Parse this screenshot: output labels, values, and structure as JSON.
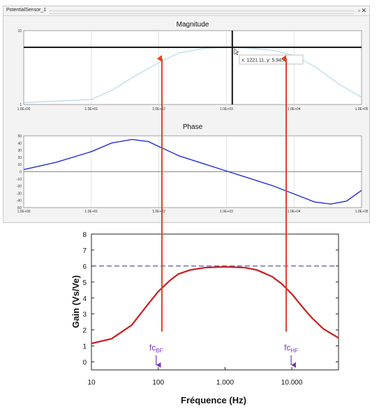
{
  "window": {
    "title": "PotentialSensor_1",
    "restore_icon": "restore-window-icon",
    "close_icon": "close-icon"
  },
  "tooltip": "x: 1221.11, y: 5.9455",
  "annotations": {
    "fc_low": "fc",
    "fc_low_sub": "BF",
    "fc_high": "fc",
    "fc_high_sub": "HF"
  },
  "colors": {
    "magnitude_curve": "#b9dcec",
    "phase_curve": "#1f2fd6",
    "gain_curve": "#cc1c1c",
    "gain_reference": "#2c2c86",
    "arrows": "#e5441f",
    "fc_markers": "#7a35c4",
    "cursor": "#111111"
  },
  "chart_data": [
    {
      "type": "line",
      "title": "Magnitude",
      "x_scale": "log",
      "xlim": [
        1,
        100000
      ],
      "ylim": [
        1,
        10
      ],
      "y_scale": "log",
      "xticks": [
        "1.0E+00",
        "1.0E+01",
        "1.0E+02",
        "1.0E+03",
        "1.0E+04",
        "1.0E+05"
      ],
      "yticks": [
        "10",
        "1"
      ],
      "grid": true,
      "x": [
        1,
        10,
        20,
        40,
        100,
        200,
        500,
        1000,
        2000,
        5000,
        10000,
        20000,
        50000,
        100000
      ],
      "series": [
        {
          "values": [
            1.06,
            1.17,
            1.55,
            2.3,
            3.7,
            5.0,
            5.8,
            5.95,
            5.85,
            5.4,
            4.6,
            3.3,
            1.8,
            1.25
          ]
        }
      ],
      "cursor": {
        "x": 1221.11,
        "y": 5.9455
      }
    },
    {
      "type": "line",
      "title": "Phase",
      "x_scale": "log",
      "xlim": [
        1,
        100000
      ],
      "ylim": [
        -50,
        50
      ],
      "xticks": [
        "1.0E+00",
        "1.0E+01",
        "1.0E+02",
        "1.0E+03",
        "1.0E+04",
        "1.0E+05"
      ],
      "yticks": [
        "50",
        "40",
        "30",
        "20",
        "10",
        "0",
        "-10",
        "-20",
        "-30",
        "-40",
        "-50"
      ],
      "grid": true,
      "x": [
        1,
        3,
        10,
        20,
        40,
        70,
        100,
        200,
        500,
        1000,
        2000,
        5000,
        10000,
        20000,
        35000,
        60000,
        100000
      ],
      "series": [
        {
          "values": [
            3,
            13,
            28,
            40,
            45,
            42,
            35,
            22,
            10,
            1,
            -8,
            -20,
            -31,
            -42,
            -45,
            -41,
            -26
          ]
        }
      ]
    },
    {
      "type": "line",
      "xlabel": "Fréquence (Hz)",
      "ylabel": "Gain (Vs/Ve)",
      "x_scale": "log",
      "xlim": [
        10,
        50000
      ],
      "ylim": [
        -0.5,
        8
      ],
      "xticks": [
        "10",
        "100",
        "1.000",
        "10.000"
      ],
      "yticks": [
        "8",
        "7",
        "6",
        "5",
        "4",
        "3",
        "2",
        "1",
        "0"
      ],
      "grid": false,
      "x": [
        10,
        20,
        40,
        70,
        100,
        150,
        200,
        300,
        500,
        1000,
        2000,
        3000,
        5000,
        7000,
        10000,
        15000,
        20000,
        30000,
        50000
      ],
      "series": [
        {
          "values": [
            1.15,
            1.45,
            2.3,
            3.6,
            4.4,
            5.1,
            5.5,
            5.75,
            5.9,
            5.95,
            5.9,
            5.75,
            5.35,
            4.9,
            4.25,
            3.35,
            2.75,
            2.05,
            1.5
          ]
        }
      ],
      "reference_line": 6,
      "fc_markers_x": [
        100,
        10000
      ]
    }
  ]
}
